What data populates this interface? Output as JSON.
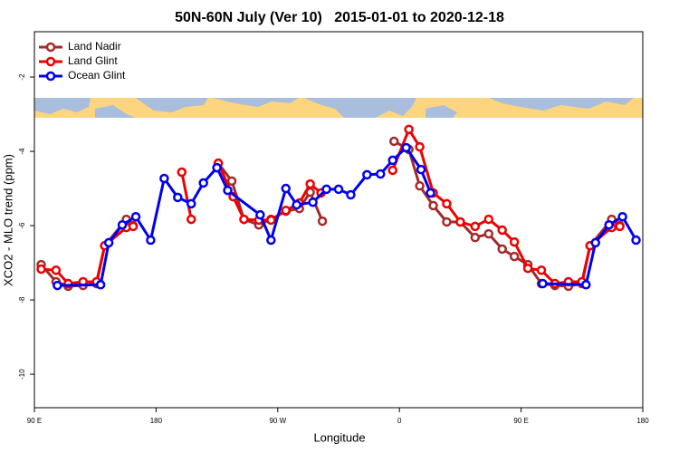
{
  "chart_data": {
    "type": "line",
    "title": "50N-60N July (Ver 10)   2015-01-01 to 2020-12-18",
    "x_label": "Longitude",
    "y_label": "XCO2 - MLO trend (ppm)",
    "xlim": [
      90,
      540
    ],
    "xticks": [
      {
        "value": 90,
        "label": "90 E"
      },
      180,
      {
        "value": 270,
        "label": "90 W"
      },
      {
        "value": 360,
        "label": "0"
      },
      {
        "value": 450,
        "label": "90 E"
      },
      {
        "value": 540,
        "label": "180"
      }
    ],
    "ylim": [
      -10.9,
      -0.78
    ],
    "yticks": [
      -10,
      -8,
      -6,
      -4,
      -2
    ],
    "grid": false,
    "legend": "top-left",
    "series": [
      {
        "name": "Land Nadir",
        "color": "#a52a2a",
        "x": [
          95,
          106,
          115,
          126,
          136,
          142,
          158,
          163,
          null,
          226,
          236,
          245,
          256,
          265,
          276,
          286,
          294,
          303,
          null,
          356,
          367,
          375,
          385,
          395,
          405,
          416,
          426,
          436,
          445,
          455,
          465,
          475,
          485,
          495,
          501,
          517,
          523
        ],
        "values": [
          -7.05,
          -7.51,
          -7.63,
          -7.61,
          -7.56,
          -6.54,
          -5.83,
          -6.0,
          null,
          -4.32,
          -4.8,
          -5.83,
          -5.98,
          -5.83,
          -5.61,
          -5.54,
          -5.1,
          -5.88,
          null,
          -3.73,
          -3.95,
          -4.93,
          -5.46,
          -5.9,
          -5.9,
          -6.32,
          -6.22,
          -6.63,
          -6.83,
          -7.05,
          -7.56,
          -7.61,
          -7.63,
          -7.56,
          -6.54,
          -5.83,
          -6.0
        ]
      },
      {
        "name": "Land Glint",
        "color": "#ee0000",
        "x": [
          95,
          106,
          115,
          126,
          136,
          142,
          158,
          163,
          null,
          199,
          206,
          null,
          226,
          237,
          245,
          256,
          265,
          276,
          286,
          294,
          302,
          null,
          355,
          367,
          375,
          385,
          395,
          405,
          416,
          426,
          436,
          445,
          455,
          465,
          475,
          485,
          495,
          501,
          517,
          523
        ],
        "values": [
          -7.17,
          -7.2,
          -7.56,
          -7.51,
          -7.51,
          -6.54,
          -6.05,
          -6.02,
          null,
          -4.56,
          -5.83,
          null,
          -4.32,
          -5.22,
          -5.83,
          -5.85,
          -5.85,
          -5.59,
          -5.39,
          -4.88,
          -5.12,
          null,
          -4.51,
          -3.41,
          -3.88,
          -5.12,
          -5.41,
          -5.9,
          -6.02,
          -5.83,
          -6.12,
          -6.44,
          -7.15,
          -7.2,
          -7.56,
          -7.51,
          -7.51,
          -6.54,
          -6.05,
          -6.02
        ]
      },
      {
        "name": "Ocean Glint",
        "color": "#0000ee",
        "x": [
          107,
          139,
          145,
          155,
          165,
          176,
          186,
          196,
          206,
          215,
          225,
          233,
          257,
          265,
          276,
          284,
          296,
          306,
          315,
          324,
          336,
          346,
          355,
          365,
          376,
          383,
          null,
          466,
          498,
          505,
          515,
          525,
          535
        ],
        "values": [
          -7.61,
          -7.59,
          -6.46,
          -5.98,
          -5.76,
          -6.39,
          -4.73,
          -5.24,
          -5.41,
          -4.85,
          -4.44,
          -5.05,
          -5.71,
          -6.39,
          -5.0,
          -5.44,
          -5.37,
          -5.02,
          -5.02,
          -5.17,
          -4.63,
          -4.61,
          -4.24,
          -3.9,
          -4.49,
          -5.12,
          null,
          -7.56,
          -7.59,
          -6.46,
          -5.98,
          -5.76,
          -6.39
        ]
      }
    ]
  }
}
